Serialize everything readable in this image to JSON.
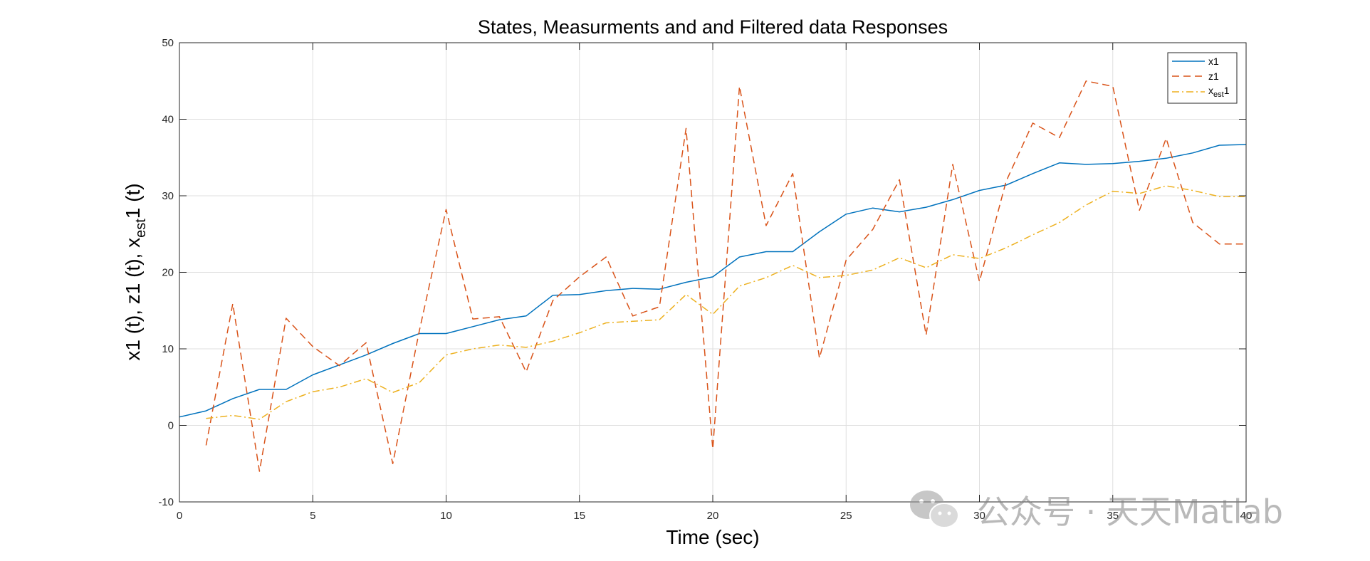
{
  "chart_data": {
    "type": "line",
    "title": "States, Measurments and and Filtered data Responses",
    "xlabel": "Time (sec)",
    "ylabel_parts": {
      "p1": "x1 (t), z1 (t), x",
      "sub": "est",
      "p2": "1 (t)"
    },
    "xlim": [
      0,
      40
    ],
    "ylim": [
      -10,
      50
    ],
    "xticks": [
      0,
      5,
      10,
      15,
      20,
      25,
      30,
      35,
      40
    ],
    "yticks": [
      -10,
      0,
      10,
      20,
      30,
      40,
      50
    ],
    "grid": true,
    "legend_position": "top-right",
    "series": [
      {
        "name": "x1",
        "color": "#0072BD",
        "style": "solid",
        "x": [
          0,
          1,
          2,
          3,
          4,
          5,
          6,
          7,
          8,
          9,
          10,
          11,
          12,
          13,
          14,
          15,
          16,
          17,
          18,
          19,
          20,
          21,
          22,
          23,
          24,
          25,
          26,
          27,
          28,
          29,
          30,
          31,
          32,
          33,
          34,
          35,
          36,
          37,
          38,
          39,
          40
        ],
        "y": [
          1.1,
          1.9,
          3.5,
          4.7,
          4.7,
          6.6,
          7.9,
          9.2,
          10.7,
          12.0,
          12.0,
          12.9,
          13.8,
          14.3,
          17.0,
          17.1,
          17.6,
          17.9,
          17.8,
          18.7,
          19.4,
          22.0,
          22.7,
          22.7,
          25.3,
          27.6,
          28.4,
          27.9,
          28.5,
          29.5,
          30.7,
          31.4,
          32.9,
          34.3,
          34.1,
          34.2,
          34.5,
          34.9,
          35.6,
          36.6,
          36.7
        ]
      },
      {
        "name": "z1",
        "color": "#D95319",
        "style": "dashed",
        "x": [
          1,
          2,
          3,
          4,
          5,
          6,
          7,
          8,
          9,
          10,
          11,
          12,
          13,
          14,
          15,
          16,
          17,
          18,
          19,
          20,
          21,
          22,
          23,
          24,
          25,
          26,
          27,
          28,
          29,
          30,
          31,
          32,
          33,
          34,
          35,
          36,
          37,
          38,
          39,
          40
        ],
        "y": [
          -2.6,
          15.9,
          -6.0,
          14.0,
          10.3,
          7.8,
          10.8,
          -5.0,
          12.4,
          28.2,
          13.9,
          14.2,
          7.0,
          16.3,
          19.4,
          22.0,
          14.3,
          15.5,
          38.8,
          -3.1,
          44.3,
          26.1,
          32.9,
          8.8,
          21.6,
          25.6,
          32.1,
          11.8,
          34.1,
          18.8,
          31.9,
          39.5,
          37.6,
          45.0,
          44.3,
          28.1,
          37.5,
          26.5,
          23.7,
          23.7
        ]
      },
      {
        "name": "x_est1",
        "legend_parts": {
          "p1": "x",
          "sub": "est",
          "p2": "1"
        },
        "color": "#EDB120",
        "style": "dashdot",
        "x": [
          1,
          2,
          3,
          4,
          5,
          6,
          7,
          8,
          9,
          10,
          11,
          12,
          13,
          14,
          15,
          16,
          17,
          18,
          19,
          20,
          21,
          22,
          23,
          24,
          25,
          26,
          27,
          28,
          29,
          30,
          31,
          32,
          33,
          34,
          35,
          36,
          37,
          38,
          39,
          40
        ],
        "y": [
          0.9,
          1.3,
          0.8,
          3.1,
          4.4,
          5.0,
          6.1,
          4.3,
          5.6,
          9.2,
          10.0,
          10.5,
          10.2,
          11.0,
          12.1,
          13.4,
          13.6,
          13.8,
          17.1,
          14.5,
          18.2,
          19.3,
          20.9,
          19.3,
          19.6,
          20.3,
          21.9,
          20.6,
          22.3,
          21.8,
          23.2,
          24.9,
          26.5,
          28.8,
          30.6,
          30.3,
          31.3,
          30.7,
          29.9,
          29.9
        ]
      }
    ]
  },
  "watermark": {
    "text": "公众号 · 天天Matlab",
    "icon": "wechat-icon"
  }
}
